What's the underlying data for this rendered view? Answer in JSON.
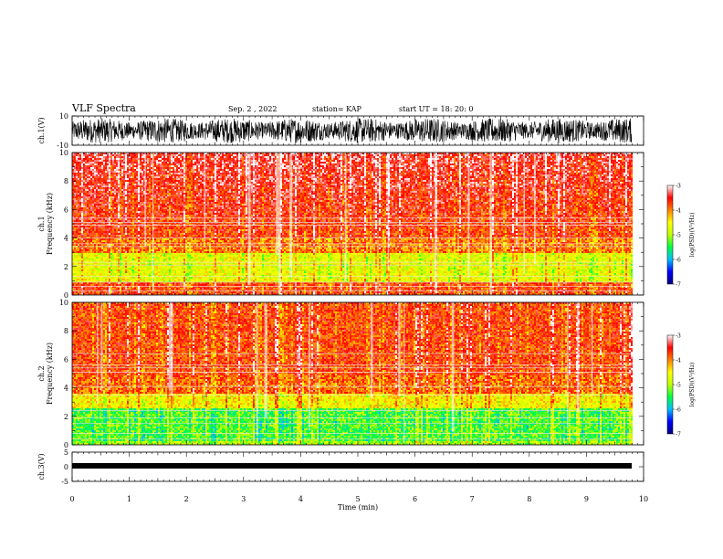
{
  "header": {
    "title": "VLF Spectra",
    "date": "Sep. 2  , 2022",
    "station": "station= KAP",
    "start_ut": "start  UT  =   18: 20: 0"
  },
  "chart_data": [
    {
      "type": "line",
      "panel": "ch1-waveform",
      "ylabel": "ch.1(V)",
      "ylim": [
        -10,
        10
      ],
      "yticks": [
        "10",
        "-10"
      ],
      "xlim": [
        0,
        10
      ],
      "series": [
        {
          "values": "dense noise signal, roughly ±8 V"
        }
      ]
    },
    {
      "type": "heatmap",
      "panel": "ch1-spectrogram",
      "ylabel": "ch.1\nFrequency (kHz)",
      "ylim": [
        0,
        10
      ],
      "yticks": [
        "0",
        "2",
        "4",
        "6",
        "8",
        "10"
      ],
      "xlim": [
        0,
        10
      ],
      "colorbar": {
        "label": "log(PSD)(V²/Hz)",
        "range": [
          -7,
          -3
        ],
        "ticks": [
          "-3",
          "-4",
          "-5",
          "-6",
          "-7"
        ],
        "colors": [
          "#000080",
          "#0000ff",
          "#00c0ff",
          "#00ff40",
          "#c0ff00",
          "#ffff00",
          "#ff8000",
          "#ff0000",
          "#ffffff"
        ]
      },
      "dominant_levels": [
        {
          "freq_range_khz": [
            0,
            1
          ],
          "level": "high (red/white)"
        },
        {
          "freq_range_khz": [
            1,
            3
          ],
          "level": "mid (yellow/green)"
        },
        {
          "freq_range_khz": [
            3,
            10
          ],
          "level": "high (red/white)"
        }
      ],
      "data_end_min": 9.8
    },
    {
      "type": "heatmap",
      "panel": "ch2-spectrogram",
      "ylabel": "ch.2\nFrequency (kHz)",
      "ylim": [
        0,
        10
      ],
      "yticks": [
        "0",
        "2",
        "4",
        "6",
        "8",
        "10"
      ],
      "xlim": [
        0,
        10
      ],
      "colorbar": {
        "label": "log(PSD)(V²/Hz)",
        "range": [
          -7,
          -3
        ],
        "ticks": [
          "-3",
          "-4",
          "-5",
          "-6",
          "-7"
        ],
        "colors": [
          "#000080",
          "#0000ff",
          "#00c0ff",
          "#00ff40",
          "#c0ff00",
          "#ffff00",
          "#ff8000",
          "#ff0000",
          "#ffffff"
        ]
      },
      "dominant_levels": [
        {
          "freq_range_khz": [
            0,
            2.5
          ],
          "level": "mid (green/cyan)"
        },
        {
          "freq_range_khz": [
            2.5,
            4
          ],
          "level": "mid-high (yellow)"
        },
        {
          "freq_range_khz": [
            4,
            10
          ],
          "level": "high (red)"
        }
      ],
      "data_end_min": 9.8
    },
    {
      "type": "line",
      "panel": "ch3-waveform",
      "ylabel": "ch.3(V)",
      "ylim": [
        -5,
        5
      ],
      "yticks": [
        "5",
        "0",
        "-5"
      ],
      "xlabel": "Time (min)",
      "xlim": [
        0,
        10
      ],
      "xticks": [
        "0",
        "1",
        "2",
        "3",
        "4",
        "5",
        "6",
        "7",
        "8",
        "9",
        "10"
      ],
      "series": [
        {
          "values": "nearly constant band around 0 V"
        }
      ]
    }
  ]
}
